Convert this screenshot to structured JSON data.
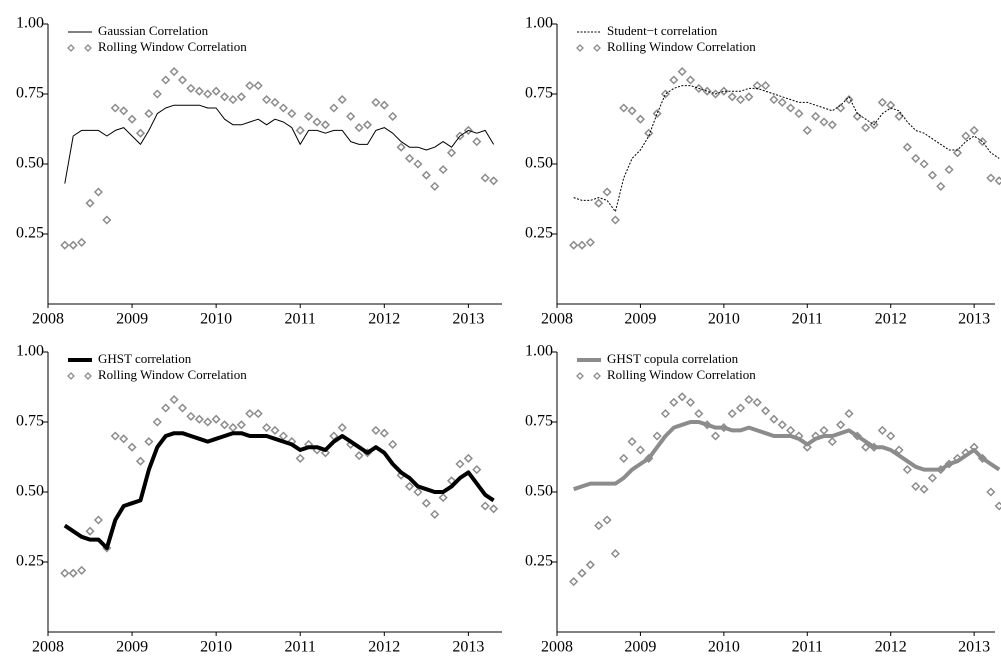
{
  "chart_data": [
    {
      "type": "line",
      "x": [
        2008.2,
        2008.3,
        2008.4,
        2008.5,
        2008.6,
        2008.7,
        2008.8,
        2008.9,
        2009.0,
        2009.1,
        2009.2,
        2009.3,
        2009.4,
        2009.5,
        2009.6,
        2009.7,
        2009.8,
        2009.9,
        2010.0,
        2010.1,
        2010.2,
        2010.3,
        2010.4,
        2010.5,
        2010.6,
        2010.7,
        2010.8,
        2010.9,
        2011.0,
        2011.1,
        2011.2,
        2011.3,
        2011.4,
        2011.5,
        2011.6,
        2011.7,
        2011.8,
        2011.9,
        2012.0,
        2012.1,
        2012.2,
        2012.3,
        2012.4,
        2012.5,
        2012.6,
        2012.7,
        2012.8,
        2012.9,
        2013.0,
        2013.1,
        2013.2,
        2013.3
      ],
      "series": [
        {
          "name": "Gaussian Correlation",
          "color": "#000000",
          "mode": "line",
          "line_style": "solid",
          "line_width": 1,
          "values": [
            0.43,
            0.6,
            0.62,
            0.62,
            0.62,
            0.6,
            0.62,
            0.63,
            0.6,
            0.57,
            0.62,
            0.68,
            0.7,
            0.71,
            0.71,
            0.71,
            0.71,
            0.7,
            0.7,
            0.66,
            0.64,
            0.64,
            0.65,
            0.66,
            0.64,
            0.66,
            0.65,
            0.63,
            0.57,
            0.62,
            0.62,
            0.61,
            0.62,
            0.62,
            0.58,
            0.57,
            0.57,
            0.62,
            0.63,
            0.61,
            0.58,
            0.56,
            0.56,
            0.55,
            0.56,
            0.58,
            0.56,
            0.6,
            0.62,
            0.61,
            0.62,
            0.57
          ]
        },
        {
          "name": "Rolling Window Correlation",
          "color": "#8c8c8c",
          "mode": "markers",
          "values": [
            0.21,
            0.21,
            0.22,
            0.36,
            0.4,
            0.3,
            0.7,
            0.69,
            0.66,
            0.61,
            0.68,
            0.75,
            0.8,
            0.83,
            0.8,
            0.77,
            0.76,
            0.75,
            0.76,
            0.74,
            0.73,
            0.74,
            0.78,
            0.78,
            0.73,
            0.72,
            0.7,
            0.68,
            0.62,
            0.67,
            0.65,
            0.64,
            0.7,
            0.73,
            0.67,
            0.63,
            0.64,
            0.72,
            0.71,
            0.67,
            0.56,
            0.52,
            0.5,
            0.46,
            0.42,
            0.48,
            0.54,
            0.6,
            0.62,
            0.58,
            0.45,
            0.44
          ]
        }
      ],
      "xlim": [
        2008,
        2013.4
      ],
      "xticks": [
        2008,
        2009,
        2010,
        2011,
        2012,
        2013
      ],
      "ylim": [
        0,
        1
      ],
      "yticks": [
        {
          "value": 1,
          "label": "1.00"
        },
        {
          "value": 0.75,
          "label": "0.75"
        },
        {
          "value": 0.5,
          "label": "0.50"
        },
        {
          "value": 0.25,
          "label": "0.25"
        }
      ],
      "legend": "upper-left"
    },
    {
      "type": "line",
      "x": [
        2008.2,
        2008.3,
        2008.4,
        2008.5,
        2008.6,
        2008.7,
        2008.8,
        2008.9,
        2009.0,
        2009.1,
        2009.2,
        2009.3,
        2009.4,
        2009.5,
        2009.6,
        2009.7,
        2009.8,
        2009.9,
        2010.0,
        2010.1,
        2010.2,
        2010.3,
        2010.4,
        2010.5,
        2010.6,
        2010.7,
        2010.8,
        2010.9,
        2011.0,
        2011.1,
        2011.2,
        2011.3,
        2011.4,
        2011.5,
        2011.6,
        2011.7,
        2011.8,
        2011.9,
        2012.0,
        2012.1,
        2012.2,
        2012.3,
        2012.4,
        2012.5,
        2012.6,
        2012.7,
        2012.8,
        2012.9,
        2013.0,
        2013.1,
        2013.2,
        2013.3
      ],
      "series": [
        {
          "name": "Student−t correlation",
          "color": "#000000",
          "mode": "line",
          "line_style": "dotted",
          "line_width": 1,
          "values": [
            0.38,
            0.37,
            0.37,
            0.38,
            0.37,
            0.33,
            0.45,
            0.52,
            0.55,
            0.6,
            0.68,
            0.75,
            0.77,
            0.78,
            0.78,
            0.77,
            0.76,
            0.75,
            0.76,
            0.76,
            0.76,
            0.77,
            0.77,
            0.76,
            0.75,
            0.74,
            0.73,
            0.72,
            0.72,
            0.71,
            0.7,
            0.69,
            0.71,
            0.74,
            0.68,
            0.66,
            0.64,
            0.68,
            0.7,
            0.69,
            0.65,
            0.62,
            0.61,
            0.59,
            0.57,
            0.55,
            0.55,
            0.58,
            0.6,
            0.58,
            0.54,
            0.52
          ]
        },
        {
          "name": "Rolling Window Correlation",
          "color": "#8c8c8c",
          "mode": "markers",
          "values": [
            0.21,
            0.21,
            0.22,
            0.36,
            0.4,
            0.3,
            0.7,
            0.69,
            0.66,
            0.61,
            0.68,
            0.75,
            0.8,
            0.83,
            0.8,
            0.77,
            0.76,
            0.75,
            0.76,
            0.74,
            0.73,
            0.74,
            0.78,
            0.78,
            0.73,
            0.72,
            0.7,
            0.68,
            0.62,
            0.67,
            0.65,
            0.64,
            0.7,
            0.73,
            0.67,
            0.63,
            0.64,
            0.72,
            0.71,
            0.67,
            0.56,
            0.52,
            0.5,
            0.46,
            0.42,
            0.48,
            0.54,
            0.6,
            0.62,
            0.58,
            0.45,
            0.44
          ]
        }
      ],
      "xlim": [
        2008,
        2013.25
      ],
      "xticks": [
        2008,
        2009,
        2010,
        2011,
        2012,
        2013
      ],
      "ylim": [
        0,
        1
      ],
      "yticks": [
        {
          "value": 1,
          "label": "1.00"
        },
        {
          "value": 0.75,
          "label": "0.75"
        },
        {
          "value": 0.5,
          "label": "0.50"
        },
        {
          "value": 0.25,
          "label": "0.25"
        }
      ],
      "legend": "upper-left"
    },
    {
      "type": "line",
      "x": [
        2008.2,
        2008.3,
        2008.4,
        2008.5,
        2008.6,
        2008.7,
        2008.8,
        2008.9,
        2009.0,
        2009.1,
        2009.2,
        2009.3,
        2009.4,
        2009.5,
        2009.6,
        2009.7,
        2009.8,
        2009.9,
        2010.0,
        2010.1,
        2010.2,
        2010.3,
        2010.4,
        2010.5,
        2010.6,
        2010.7,
        2010.8,
        2010.9,
        2011.0,
        2011.1,
        2011.2,
        2011.3,
        2011.4,
        2011.5,
        2011.6,
        2011.7,
        2011.8,
        2011.9,
        2012.0,
        2012.1,
        2012.2,
        2012.3,
        2012.4,
        2012.5,
        2012.6,
        2012.7,
        2012.8,
        2012.9,
        2013.0,
        2013.1,
        2013.2,
        2013.3
      ],
      "series": [
        {
          "name": "GHST correlation",
          "color": "#000000",
          "mode": "line",
          "line_style": "solid",
          "line_width": 4,
          "values": [
            0.38,
            0.36,
            0.34,
            0.33,
            0.33,
            0.3,
            0.4,
            0.45,
            0.46,
            0.47,
            0.58,
            0.66,
            0.7,
            0.71,
            0.71,
            0.7,
            0.69,
            0.68,
            0.69,
            0.7,
            0.71,
            0.71,
            0.7,
            0.7,
            0.7,
            0.69,
            0.68,
            0.67,
            0.65,
            0.66,
            0.66,
            0.65,
            0.68,
            0.7,
            0.68,
            0.66,
            0.64,
            0.66,
            0.64,
            0.6,
            0.57,
            0.55,
            0.52,
            0.51,
            0.5,
            0.5,
            0.52,
            0.55,
            0.57,
            0.53,
            0.49,
            0.47
          ]
        },
        {
          "name": "Rolling Window Correlation",
          "color": "#8c8c8c",
          "mode": "markers",
          "values": [
            0.21,
            0.21,
            0.22,
            0.36,
            0.4,
            0.3,
            0.7,
            0.69,
            0.66,
            0.61,
            0.68,
            0.75,
            0.8,
            0.83,
            0.8,
            0.77,
            0.76,
            0.75,
            0.76,
            0.74,
            0.73,
            0.74,
            0.78,
            0.78,
            0.73,
            0.72,
            0.7,
            0.68,
            0.62,
            0.67,
            0.65,
            0.64,
            0.7,
            0.73,
            0.67,
            0.63,
            0.64,
            0.72,
            0.71,
            0.67,
            0.56,
            0.52,
            0.5,
            0.46,
            0.42,
            0.48,
            0.54,
            0.6,
            0.62,
            0.58,
            0.45,
            0.44
          ]
        }
      ],
      "xlim": [
        2008,
        2013.4
      ],
      "xticks": [
        2008,
        2009,
        2010,
        2011,
        2012,
        2013
      ],
      "ylim": [
        0,
        1
      ],
      "yticks": [
        {
          "value": 1,
          "label": "1.00"
        },
        {
          "value": 0.75,
          "label": "0.75"
        },
        {
          "value": 0.5,
          "label": "0.50"
        },
        {
          "value": 0.25,
          "label": "0.25"
        }
      ],
      "legend": "upper-left"
    },
    {
      "type": "line",
      "x": [
        2008.2,
        2008.3,
        2008.4,
        2008.5,
        2008.6,
        2008.7,
        2008.8,
        2008.9,
        2009.0,
        2009.1,
        2009.2,
        2009.3,
        2009.4,
        2009.5,
        2009.6,
        2009.7,
        2009.8,
        2009.9,
        2010.0,
        2010.1,
        2010.2,
        2010.3,
        2010.4,
        2010.5,
        2010.6,
        2010.7,
        2010.8,
        2010.9,
        2011.0,
        2011.1,
        2011.2,
        2011.3,
        2011.4,
        2011.5,
        2011.6,
        2011.7,
        2011.8,
        2011.9,
        2012.0,
        2012.1,
        2012.2,
        2012.3,
        2012.4,
        2012.5,
        2012.6,
        2012.7,
        2012.8,
        2012.9,
        2013.0,
        2013.1,
        2013.2,
        2013.3
      ],
      "series": [
        {
          "name": "GHST copula correlation",
          "color": "#8c8c8c",
          "mode": "line",
          "line_style": "solid",
          "line_width": 4,
          "values": [
            0.51,
            0.52,
            0.53,
            0.53,
            0.53,
            0.53,
            0.55,
            0.58,
            0.6,
            0.62,
            0.66,
            0.7,
            0.73,
            0.74,
            0.75,
            0.75,
            0.74,
            0.73,
            0.73,
            0.72,
            0.72,
            0.73,
            0.72,
            0.71,
            0.7,
            0.7,
            0.7,
            0.69,
            0.67,
            0.69,
            0.7,
            0.7,
            0.71,
            0.72,
            0.7,
            0.68,
            0.66,
            0.66,
            0.65,
            0.63,
            0.61,
            0.59,
            0.58,
            0.58,
            0.58,
            0.6,
            0.61,
            0.63,
            0.65,
            0.62,
            0.6,
            0.58
          ]
        },
        {
          "name": "Rolling Window Correlation",
          "color": "#8c8c8c",
          "mode": "markers",
          "values": [
            0.18,
            0.21,
            0.24,
            0.38,
            0.4,
            0.28,
            0.62,
            0.68,
            0.65,
            0.62,
            0.7,
            0.78,
            0.82,
            0.84,
            0.82,
            0.78,
            0.74,
            0.7,
            0.73,
            0.78,
            0.8,
            0.83,
            0.82,
            0.79,
            0.76,
            0.74,
            0.72,
            0.7,
            0.66,
            0.7,
            0.72,
            0.68,
            0.74,
            0.78,
            0.7,
            0.66,
            0.66,
            0.72,
            0.7,
            0.65,
            0.58,
            0.52,
            0.51,
            0.55,
            0.58,
            0.6,
            0.62,
            0.64,
            0.66,
            0.62,
            0.5,
            0.45
          ]
        }
      ],
      "xlim": [
        2008,
        2013.25
      ],
      "xticks": [
        2008,
        2009,
        2010,
        2011,
        2012,
        2013
      ],
      "ylim": [
        0,
        1
      ],
      "yticks": [
        {
          "value": 1,
          "label": "1.00"
        },
        {
          "value": 0.75,
          "label": "0.75"
        },
        {
          "value": 0.5,
          "label": "0.50"
        },
        {
          "value": 0.25,
          "label": "0.25"
        }
      ],
      "legend": "upper-left"
    }
  ]
}
